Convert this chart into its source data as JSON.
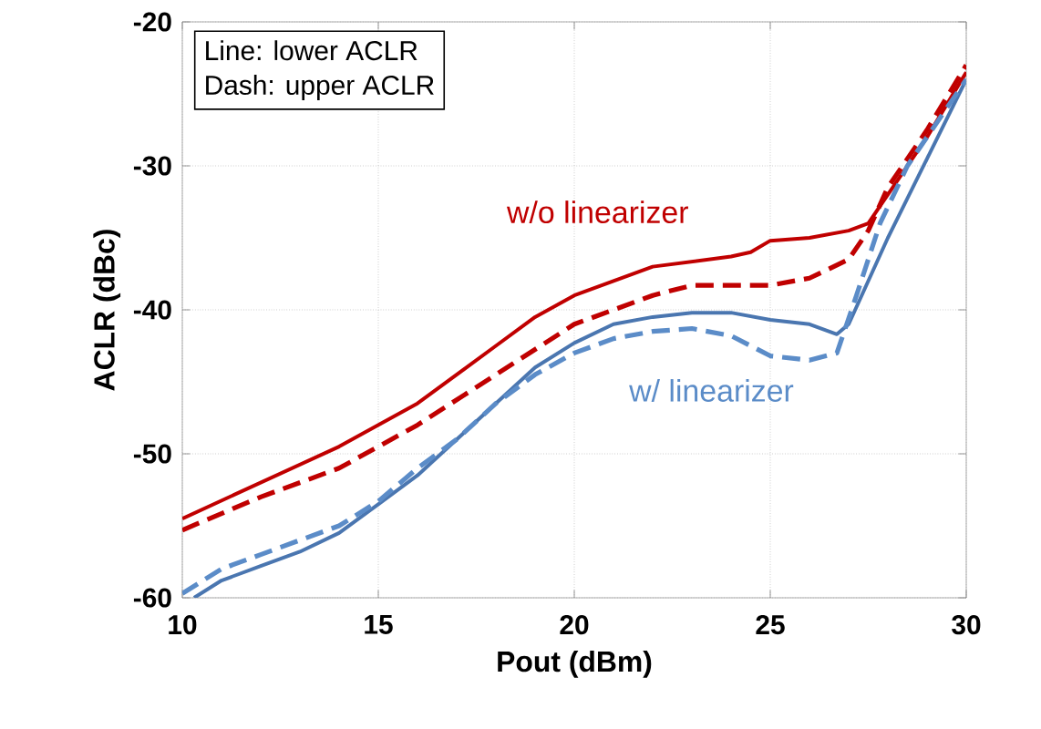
{
  "chart_data": {
    "type": "line",
    "xlabel": "Pout (dBm)",
    "ylabel": "ACLR (dBc)",
    "xlim": [
      10,
      30
    ],
    "xticks": [
      10,
      15,
      20,
      25,
      30
    ],
    "ylim": [
      -60,
      -20
    ],
    "yticks": [
      -60,
      -50,
      -40,
      -30,
      -20
    ],
    "grid": true,
    "series": [
      {
        "color": "#c00000",
        "line_style": "solid",
        "x": [
          10,
          12,
          14,
          16,
          18,
          19,
          20,
          21,
          22,
          24,
          24.5,
          25,
          26,
          27,
          27.5,
          28,
          29,
          30
        ],
        "values": [
          -54.5,
          -52,
          -49.5,
          -46.5,
          -42.5,
          -40.5,
          -39,
          -38,
          -37,
          -36.3,
          -36,
          -35.2,
          -35,
          -34.5,
          -34,
          -32,
          -28,
          -23.5
        ]
      },
      {
        "color": "#c00000",
        "line_style": "dashed",
        "x": [
          10,
          12,
          14,
          16,
          18,
          20,
          21,
          22,
          23,
          25,
          26,
          27,
          27.5,
          28,
          29,
          30
        ],
        "values": [
          -55.3,
          -53,
          -51,
          -48,
          -44.5,
          -41,
          -40,
          -39,
          -38.3,
          -38.3,
          -37.8,
          -36.5,
          -34.5,
          -31.5,
          -27.5,
          -23
        ]
      },
      {
        "color": "#4a76b0",
        "line_style": "solid",
        "x": [
          10.3,
          11,
          12,
          13,
          14,
          15,
          16,
          17,
          18,
          19,
          20,
          21,
          22,
          23,
          24,
          25,
          26,
          26.7,
          27,
          28,
          29,
          30
        ],
        "values": [
          -60,
          -58.8,
          -57.8,
          -56.8,
          -55.5,
          -53.5,
          -51.5,
          -49,
          -46.5,
          -44,
          -42.3,
          -41,
          -40.5,
          -40.2,
          -40.2,
          -40.7,
          -41,
          -41.7,
          -41,
          -35,
          -29.5,
          -24
        ]
      },
      {
        "color": "#5b8cc8",
        "line_style": "dashed",
        "x": [
          10,
          11,
          12,
          13,
          14,
          15,
          16,
          17,
          18,
          19,
          20,
          21,
          22,
          23,
          24,
          25,
          26,
          26.7,
          27.2,
          27.8,
          28.5,
          29.5,
          30
        ],
        "values": [
          -59.7,
          -58,
          -57,
          -56,
          -55,
          -53.3,
          -51,
          -49,
          -46.5,
          -44.5,
          -43,
          -42,
          -41.5,
          -41.3,
          -41.8,
          -43.2,
          -43.5,
          -43,
          -39,
          -34,
          -30,
          -26,
          -24
        ]
      }
    ],
    "annotations": [
      "Line: lower ACLR",
      "Dash: upper ACLR",
      "w/o linearizer",
      "w/ linearizer"
    ]
  }
}
